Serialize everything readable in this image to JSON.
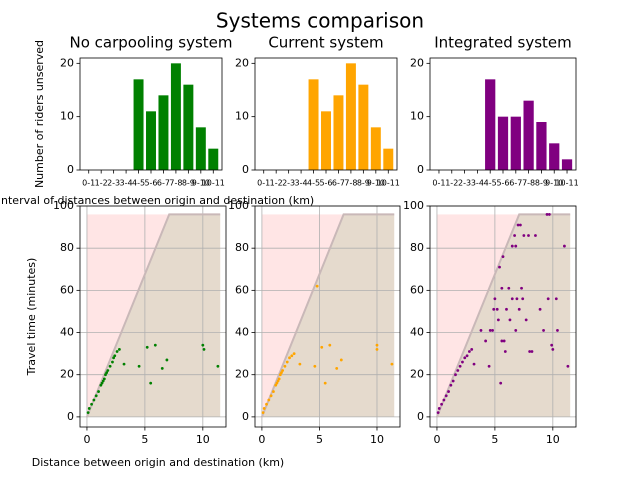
{
  "title": "Systems comparison",
  "chart_data": [
    {
      "type": "bar",
      "title": "No carpooling system",
      "y_label": "Number of riders unserved",
      "x_label": "Interval of distances between origin and destination (km)",
      "categories": [
        "0-1",
        "1-2",
        "2-3",
        "3-4",
        "4-5",
        "5-6",
        "6-7",
        "7-8",
        "8-9",
        "9-10",
        "10-11"
      ],
      "values": [
        0,
        0,
        0,
        0,
        17,
        11,
        14,
        20,
        16,
        8,
        4
      ],
      "color": "#008000",
      "ylim": [
        0,
        21
      ],
      "yticks": [
        0,
        10,
        20
      ],
      "grid": false
    },
    {
      "type": "bar",
      "title": "Current system",
      "categories": [
        "0-1",
        "1-2",
        "2-3",
        "3-4",
        "4-5",
        "5-6",
        "6-7",
        "7-8",
        "8-9",
        "9-10",
        "10-11"
      ],
      "values": [
        0,
        0,
        0,
        0,
        17,
        11,
        14,
        20,
        16,
        8,
        4
      ],
      "color": "#ffa500",
      "ylim": [
        0,
        21
      ],
      "yticks": [
        0,
        10,
        20
      ],
      "grid": false
    },
    {
      "type": "bar",
      "title": "Integrated system",
      "categories": [
        "0-1",
        "1-2",
        "2-3",
        "3-4",
        "4-5",
        "5-6",
        "6-7",
        "7-8",
        "8-9",
        "9-10",
        "10-11"
      ],
      "values": [
        0,
        0,
        0,
        0,
        17,
        10,
        10,
        13,
        9,
        5,
        2
      ],
      "color": "#800080",
      "ylim": [
        0,
        21
      ],
      "yticks": [
        0,
        10,
        20
      ],
      "grid": false
    },
    {
      "type": "scatter",
      "y_label": "Travel time (minutes)",
      "x_label": "Distance between origin and destination (km)",
      "x": [
        0.1,
        0.2,
        0.4,
        0.6,
        0.8,
        1.0,
        1.2,
        1.3,
        1.4,
        1.5,
        1.6,
        1.7,
        1.8,
        2.0,
        2.2,
        2.3,
        2.4,
        2.6,
        2.8,
        3.2,
        4.5,
        5.2,
        5.5,
        5.9,
        6.5,
        6.9,
        10.0,
        10.1,
        11.3
      ],
      "values": [
        2,
        4,
        6,
        8,
        10,
        12,
        15,
        16,
        17,
        18,
        20,
        21,
        22,
        24,
        26,
        28,
        29,
        31,
        32,
        25,
        24,
        33,
        16,
        34,
        23,
        27,
        34,
        32,
        24
      ],
      "color": "#008000",
      "boundary": {
        "x": [
          0,
          7.1,
          11.5
        ],
        "y": [
          0,
          96,
          96
        ]
      },
      "xlim": [
        -0.6,
        12
      ],
      "ylim": [
        -4.8,
        100
      ],
      "xticks": [
        0,
        5,
        10
      ],
      "yticks": [
        0,
        20,
        40,
        60,
        80,
        100
      ],
      "grid": true
    },
    {
      "type": "scatter",
      "x": [
        0.1,
        0.2,
        0.4,
        0.6,
        0.8,
        1.0,
        1.2,
        1.3,
        1.4,
        1.5,
        1.6,
        1.7,
        1.8,
        2.0,
        2.2,
        2.4,
        2.6,
        2.8,
        3.3,
        4.6,
        4.8,
        5.2,
        5.5,
        5.9,
        6.5,
        6.9,
        10.0,
        10.0,
        11.3
      ],
      "values": [
        2,
        4,
        6,
        8,
        10,
        12,
        15,
        16,
        17,
        18,
        20,
        21,
        22,
        24,
        26,
        28,
        29,
        30,
        25,
        24,
        62,
        33,
        16,
        34,
        23,
        27,
        34,
        32,
        25
      ],
      "color": "#ffa500",
      "boundary": {
        "x": [
          0,
          7.1,
          11.5
        ],
        "y": [
          0,
          96,
          96
        ]
      },
      "xlim": [
        -0.6,
        12
      ],
      "ylim": [
        -4.8,
        100
      ],
      "xticks": [
        0,
        5,
        10
      ],
      "yticks": [
        0,
        20,
        40,
        60,
        80,
        100
      ],
      "grid": true
    },
    {
      "type": "scatter",
      "x": [
        0.1,
        0.2,
        0.4,
        0.6,
        0.8,
        1.0,
        1.2,
        1.4,
        1.6,
        1.8,
        2.0,
        2.2,
        2.4,
        2.6,
        2.8,
        3.0,
        3.2,
        3.8,
        4.2,
        4.5,
        4.6,
        4.8,
        5.0,
        4.9,
        5.2,
        5.3,
        5.5,
        5.4,
        5.6,
        5.7,
        5.6,
        5.8,
        5.9,
        6.0,
        6.2,
        6.3,
        6.5,
        6.5,
        6.7,
        6.8,
        6.8,
        6.9,
        7.0,
        7.1,
        7.2,
        7.3,
        7.4,
        7.5,
        7.7,
        7.9,
        8.0,
        8.2,
        8.5,
        8.9,
        9.2,
        9.5,
        9.6,
        9.7,
        9.9,
        10.0,
        10.3,
        10.4,
        11.0,
        11.3
      ],
      "values": [
        2,
        4,
        6,
        8,
        10,
        12,
        15,
        17,
        20,
        22,
        24,
        26,
        28,
        29,
        31,
        32,
        25,
        41,
        36,
        24,
        41,
        41,
        56,
        51,
        51,
        46,
        16,
        71,
        61,
        76,
        36,
        36,
        31,
        51,
        61,
        46,
        56,
        81,
        86,
        81,
        41,
        56,
        91,
        51,
        91,
        61,
        56,
        86,
        46,
        86,
        31,
        31,
        86,
        51,
        41,
        96,
        56,
        96,
        34,
        32,
        56,
        41,
        81,
        24
      ],
      "color": "#800080",
      "boundary": {
        "x": [
          0,
          7.1,
          11.5
        ],
        "y": [
          0,
          96,
          96
        ]
      },
      "xlim": [
        -0.6,
        12
      ],
      "ylim": [
        -4.8,
        100
      ],
      "xticks": [
        0,
        5,
        10
      ],
      "yticks": [
        0,
        20,
        40,
        60,
        80,
        100
      ],
      "grid": true
    }
  ]
}
